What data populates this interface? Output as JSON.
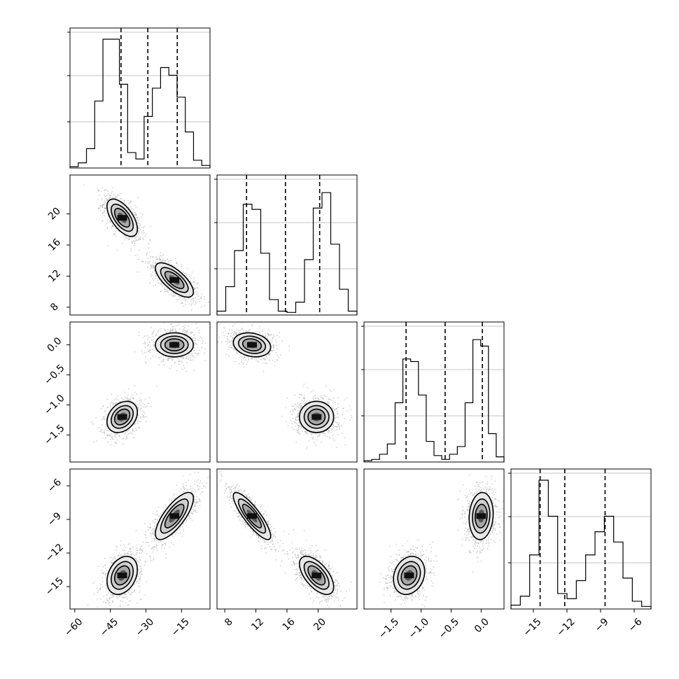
{
  "chart_data": {
    "type": "scatter",
    "layout": "corner",
    "grid": true,
    "params": [
      {
        "name": "p0",
        "range": [
          -62,
          -3
        ],
        "ticks": [
          -60,
          -45,
          -30,
          -15
        ],
        "tick_labels": [
          "−60",
          "−45",
          "−30",
          "−15"
        ],
        "modes": [
          {
            "mean": -40,
            "sd": 3.2,
            "w": 0.5
          },
          {
            "mean": -18,
            "sd": 4.0,
            "w": 0.5
          }
        ],
        "quantiles": [
          -40.5,
          -29.2,
          -16.8
        ],
        "hist": [
          0.01,
          0.04,
          0.15,
          0.52,
          1.0,
          1.0,
          0.65,
          0.12,
          0.07,
          0.4,
          0.62,
          0.78,
          0.72,
          0.55,
          0.28,
          0.06,
          0.02
        ]
      },
      {
        "name": "p1",
        "range": [
          7,
          25
        ],
        "ticks": [
          8,
          12,
          16,
          20
        ],
        "tick_labels": [
          "8",
          "12",
          "16",
          "20"
        ],
        "modes": [
          {
            "mean": 11.5,
            "sd": 1.2,
            "w": 0.5
          },
          {
            "mean": 19.8,
            "sd": 1.1,
            "w": 0.5
          }
        ],
        "quantiles": [
          10.8,
          15.8,
          20.2
        ],
        "hist": [
          0.03,
          0.22,
          0.5,
          0.86,
          0.82,
          0.48,
          0.12,
          0.03,
          0.02,
          0.1,
          0.43,
          0.83,
          0.95,
          0.55,
          0.2,
          0.03
        ]
      },
      {
        "name": "p2",
        "range": [
          -1.95,
          0.38
        ],
        "ticks": [
          -1.5,
          -1.0,
          -0.5,
          0.0
        ],
        "tick_labels": [
          "−1.5",
          "−1.0",
          "−0.5",
          "0.0"
        ],
        "modes": [
          {
            "mean": -1.2,
            "sd": 0.13,
            "w": 0.5
          },
          {
            "mean": 0.0,
            "sd": 0.1,
            "w": 0.5
          }
        ],
        "quantiles": [
          -1.25,
          -0.6,
          0.02
        ],
        "hist": [
          0.01,
          0.02,
          0.06,
          0.14,
          0.46,
          0.8,
          0.78,
          0.52,
          0.16,
          0.05,
          0.02,
          0.06,
          0.12,
          0.46,
          0.95,
          0.9,
          0.22,
          0.04
        ]
      },
      {
        "name": "p3",
        "range": [
          -17,
          -4.5
        ],
        "ticks": [
          -15,
          -12,
          -9,
          -6
        ],
        "tick_labels": [
          "−15",
          "−12",
          "−9",
          "−6"
        ],
        "modes": [
          {
            "mean": -14.0,
            "sd": 0.85,
            "w": 0.5
          },
          {
            "mean": -8.7,
            "sd": 1.05,
            "w": 0.5
          }
        ],
        "quantiles": [
          -14.4,
          -12.2,
          -8.6
        ],
        "hist": [
          0.03,
          0.1,
          0.42,
          1.0,
          0.72,
          0.12,
          0.08,
          0.22,
          0.42,
          0.6,
          0.72,
          0.52,
          0.24,
          0.06,
          0.02
        ]
      }
    ],
    "pairs": [
      {
        "x": 0,
        "y": 1,
        "clusters": [
          {
            "mx": -40,
            "my": 19.5,
            "sx": 3.2,
            "sy": 1.2,
            "rho": -0.6
          },
          {
            "mx": -18,
            "my": 11.5,
            "sx": 4.0,
            "sy": 1.1,
            "rho": -0.7
          }
        ]
      },
      {
        "x": 0,
        "y": 2,
        "clusters": [
          {
            "mx": -40,
            "my": -1.2,
            "sx": 3.2,
            "sy": 0.13,
            "rho": 0.3
          },
          {
            "mx": -18,
            "my": 0.0,
            "sx": 4.0,
            "sy": 0.1,
            "rho": 0.0
          }
        ]
      },
      {
        "x": 0,
        "y": 3,
        "clusters": [
          {
            "mx": -40,
            "my": -14.0,
            "sx": 3.2,
            "sy": 0.85,
            "rho": 0.3
          },
          {
            "mx": -18,
            "my": -8.7,
            "sx": 4.0,
            "sy": 1.05,
            "rho": 0.75
          }
        ]
      },
      {
        "x": 1,
        "y": 2,
        "clusters": [
          {
            "mx": 11.5,
            "my": 0.0,
            "sx": 1.2,
            "sy": 0.1,
            "rho": -0.2
          },
          {
            "mx": 19.8,
            "my": -1.2,
            "sx": 1.1,
            "sy": 0.13,
            "rho": 0.0
          }
        ]
      },
      {
        "x": 1,
        "y": 3,
        "clusters": [
          {
            "mx": 11.5,
            "my": -8.7,
            "sx": 1.2,
            "sy": 1.05,
            "rho": -0.85
          },
          {
            "mx": 19.8,
            "my": -14.0,
            "sx": 1.1,
            "sy": 0.85,
            "rho": -0.6
          }
        ]
      },
      {
        "x": 2,
        "y": 3,
        "clusters": [
          {
            "mx": 0.0,
            "my": -8.7,
            "sx": 0.1,
            "sy": 1.05,
            "rho": 0.1
          },
          {
            "mx": -1.2,
            "my": -14.0,
            "sx": 0.13,
            "sy": 0.85,
            "rho": 0.2
          }
        ]
      }
    ],
    "colors": {
      "axes": "#000000",
      "grid": "#b0b0b0",
      "points": "#a9a9a9",
      "fill_light": "#e8e8e8",
      "fill_mid": "#a7a7a7",
      "fill_dark": "#565656",
      "peak": "#111111"
    }
  }
}
